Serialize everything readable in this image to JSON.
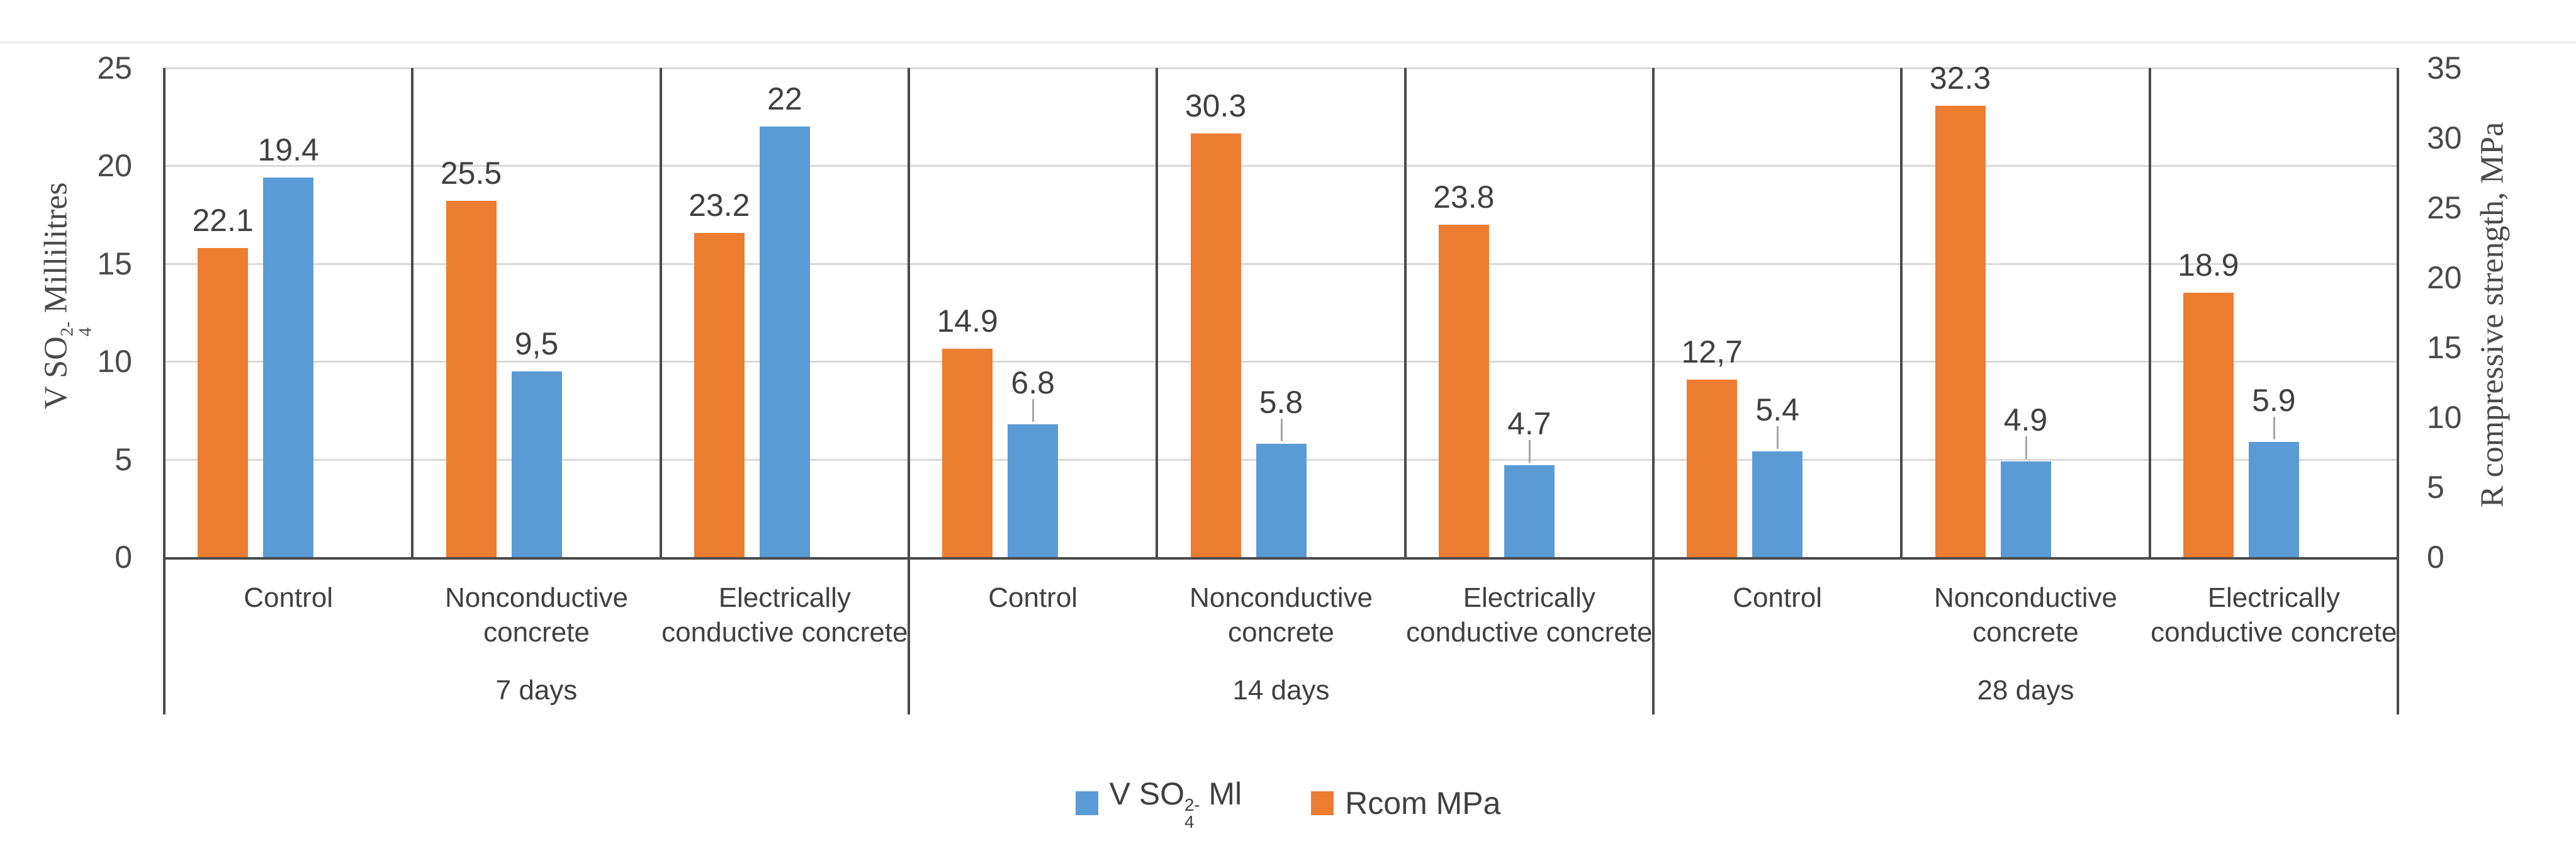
{
  "chart_data": {
    "type": "bar",
    "title": "",
    "groups": [
      {
        "label": "7 days",
        "categories": [
          [
            "Control"
          ],
          [
            "Nonconductive",
            "concrete"
          ],
          [
            "Electrically",
            "conductive concrete"
          ]
        ]
      },
      {
        "label": "14 days",
        "categories": [
          [
            "Control"
          ],
          [
            "Nonconductive",
            "concrete"
          ],
          [
            "Electrically",
            "conductive concrete"
          ]
        ]
      },
      {
        "label": "28 days",
        "categories": [
          [
            "Control"
          ],
          [
            "Nonconductive",
            "concrete"
          ],
          [
            "Electrically",
            "conductive concrete"
          ]
        ]
      }
    ],
    "series": [
      {
        "name": "V SO4(2-) Ml",
        "axis": "left",
        "color": "#5B9BD5",
        "values": [
          19.4,
          9.5,
          22,
          6.8,
          5.8,
          4.7,
          5.4,
          4.9,
          5.9
        ],
        "labels": [
          "19.4",
          "9,5",
          "22",
          "6.8",
          "5.8",
          "4.7",
          "5.4",
          "4.9",
          "5.9"
        ],
        "leader": [
          false,
          false,
          false,
          true,
          true,
          true,
          true,
          true,
          true
        ]
      },
      {
        "name": "Rcom MPa",
        "axis": "right",
        "color": "#ED7D31",
        "values": [
          22.1,
          25.5,
          23.2,
          14.9,
          30.3,
          23.8,
          12.7,
          32.3,
          18.9
        ],
        "labels": [
          "22.1",
          "25.5",
          "23.2",
          "14.9",
          "30.3",
          "23.8",
          "12,7",
          "32.3",
          "18.9"
        ],
        "leader": [
          false,
          false,
          false,
          false,
          false,
          false,
          false,
          false,
          false
        ]
      }
    ],
    "axes": {
      "left": {
        "title": "V SO4(2-) Millilitres",
        "title_parts": {
          "prefix": "V SO",
          "sup": "2-",
          "sub": "4",
          "suffix": " Millilitres"
        },
        "min": 0,
        "max": 25,
        "step": 5,
        "ticks": [
          "0",
          "5",
          "10",
          "15",
          "20",
          "25"
        ]
      },
      "right": {
        "title": "R compressive strength, MPa",
        "min": 0,
        "max": 35,
        "step": 5,
        "ticks": [
          "0",
          "5",
          "10",
          "15",
          "20",
          "25",
          "30",
          "35"
        ]
      }
    },
    "legend": [
      {
        "label": "V SO4(2-) Ml",
        "label_parts": {
          "prefix": "V SO",
          "sup": "2-",
          "sub": "4",
          "suffix": " Ml"
        },
        "color": "#5B9BD5"
      },
      {
        "label": "Rcom MPa",
        "color": "#ED7D31"
      }
    ],
    "layout_hints": {
      "grid": "horizontal major, light gray",
      "category_separators": true,
      "legend_position": "bottom"
    }
  },
  "colors": {
    "bar_blue": "#5B9BD5",
    "bar_orange": "#ED7D31",
    "gridline": "#d9d9d9",
    "axis_line": "#4a4a4a",
    "text": "#404040",
    "leader_line": "#a6a6a6"
  }
}
